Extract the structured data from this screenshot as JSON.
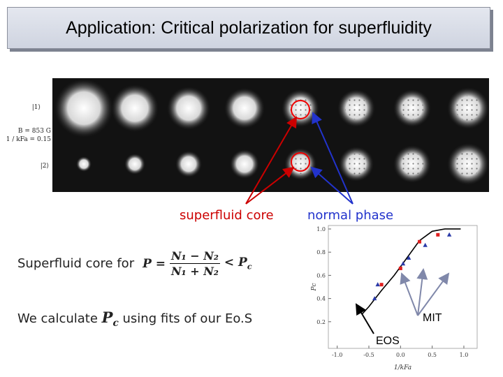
{
  "title": "Application: Critical polarization for superfluidity",
  "image_labels": {
    "state1": "|1⟩",
    "field": "B = 853 G",
    "interaction": "1 / kFa = 0.15",
    "state2": "|2⟩"
  },
  "callouts": {
    "superfluid": "superfluid core",
    "normal": "normal phase",
    "mit": "MIT",
    "eos": "EOS"
  },
  "line1": {
    "text": "Superfluid core for",
    "lhs": "P =",
    "numerator": "N₁ − N₂",
    "denominator": "N₁ + N₂",
    "rhs": "< P",
    "rhs_sub": "c"
  },
  "line2": {
    "before": "We calculate",
    "symbol": "P",
    "symbol_sub": "c",
    "after": "using fits of our Eo.S"
  },
  "plot": {
    "xlabel": "1/kFa",
    "ylabel": "Pc",
    "xlim": [
      -1.14,
      1.21
    ],
    "ylim": [
      -0.03,
      1.03
    ],
    "xticks": [
      {
        "value": -1.0,
        "label": "-1.0"
      },
      {
        "value": -0.5,
        "label": "-0.5"
      },
      {
        "value": 0.0,
        "label": "0.0"
      },
      {
        "value": 0.5,
        "label": "0.5"
      },
      {
        "value": 1.0,
        "label": "1.0"
      }
    ],
    "yticks": [
      0.2,
      0.4,
      0.6,
      0.8,
      {
        "value": 1.0,
        "label": "1.0"
      }
    ],
    "curve": {
      "x": [
        -0.6,
        -0.5,
        -0.3,
        -0.1,
        0.1,
        0.3,
        0.5,
        0.7,
        0.95
      ],
      "y": [
        0.27,
        0.33,
        0.47,
        0.6,
        0.75,
        0.9,
        0.98,
        1.0,
        1.0
      ],
      "color": "#000000"
    },
    "squares": {
      "x": [
        -0.3,
        0.0,
        0.3,
        0.59
      ],
      "y": [
        0.52,
        0.66,
        0.89,
        0.95
      ],
      "color": "#e02020"
    },
    "triangles": {
      "x": [
        -0.41,
        -0.36,
        0.04,
        0.13,
        0.39,
        0.77
      ],
      "y": [
        0.4,
        0.52,
        0.7,
        0.75,
        0.86,
        0.95
      ],
      "color": "#2a3aa8"
    }
  }
}
